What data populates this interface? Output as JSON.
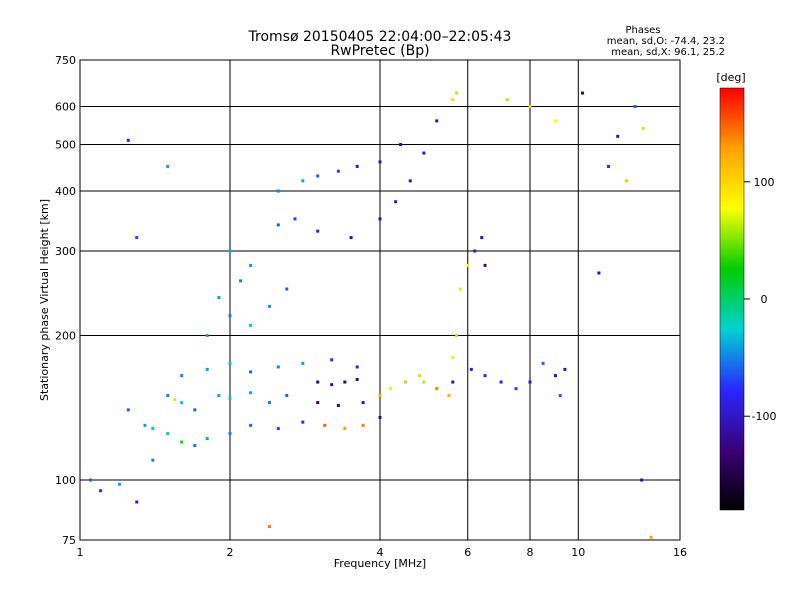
{
  "chart_data": {
    "type": "scatter",
    "title": "Tromsø 20150405 22:04:00–22:05:43",
    "subtitle": "RwPretec (Bp)",
    "xlabel": "Frequency [MHz]",
    "ylabel": "Stationary phase Virtual Height [km]",
    "x_scale": "log",
    "y_scale": "log",
    "xlim": [
      1,
      16
    ],
    "ylim": [
      75,
      750
    ],
    "xticks": [
      "1",
      "2",
      "4",
      "6",
      "8",
      "10",
      "16"
    ],
    "yticks": [
      "75",
      "100",
      "200",
      "300",
      "400",
      "500",
      "600",
      "750"
    ],
    "grid": true,
    "info_box": {
      "heading": "Phases",
      "line_o": "mean, sd,O: -74.4, 23.2",
      "line_x": "mean, sd,X: 96.1, 25.2"
    },
    "colorbar": {
      "label": "[deg]",
      "range": [
        -180,
        180
      ],
      "ticks": [
        "100",
        "0",
        "-100"
      ],
      "colors": [
        "#000000",
        "#3c0078",
        "#2828ff",
        "#00d2d2",
        "#00cd00",
        "#ffff00",
        "#ffa000",
        "#ff0000"
      ]
    },
    "series": [
      {
        "values": [
          [
            1.25,
            140,
            -60
          ],
          [
            1.35,
            130,
            -40
          ],
          [
            1.4,
            128,
            -30
          ],
          [
            1.5,
            125,
            -20
          ],
          [
            1.6,
            120,
            30
          ],
          [
            1.7,
            118,
            -50
          ],
          [
            1.8,
            122,
            -40
          ],
          [
            2.0,
            125,
            -50
          ],
          [
            2.2,
            130,
            -60
          ],
          [
            2.5,
            128,
            -70
          ],
          [
            2.8,
            132,
            -80
          ],
          [
            1.5,
            150,
            -50
          ],
          [
            1.6,
            145,
            -30
          ],
          [
            1.55,
            147,
            100
          ],
          [
            1.7,
            140,
            -60
          ],
          [
            1.9,
            150,
            -40
          ],
          [
            2.0,
            148,
            -30
          ],
          [
            2.2,
            152,
            -40
          ],
          [
            2.4,
            145,
            -50
          ],
          [
            2.6,
            150,
            -60
          ],
          [
            1.6,
            165,
            -50
          ],
          [
            1.8,
            170,
            -40
          ],
          [
            2.0,
            175,
            -30
          ],
          [
            2.2,
            168,
            -60
          ],
          [
            2.5,
            172,
            -50
          ],
          [
            2.8,
            175,
            -40
          ],
          [
            3.2,
            178,
            -80
          ],
          [
            3.6,
            172,
            -90
          ],
          [
            1.8,
            200,
            -40
          ],
          [
            2.0,
            220,
            -50
          ],
          [
            2.2,
            210,
            -30
          ],
          [
            1.9,
            240,
            -40
          ],
          [
            2.1,
            260,
            -50
          ],
          [
            2.2,
            280,
            -45
          ],
          [
            2.0,
            300,
            -35
          ],
          [
            2.4,
            230,
            -40
          ],
          [
            2.6,
            250,
            -60
          ],
          [
            2.5,
            340,
            -60
          ],
          [
            2.7,
            350,
            -70
          ],
          [
            3.0,
            330,
            -90
          ],
          [
            3.5,
            320,
            -110
          ],
          [
            4.0,
            350,
            -110
          ],
          [
            4.3,
            380,
            -100
          ],
          [
            4.6,
            420,
            -110
          ],
          [
            4.9,
            480,
            -100
          ],
          [
            5.2,
            560,
            -110
          ],
          [
            5.6,
            620,
            100
          ],
          [
            5.7,
            640,
            60
          ],
          [
            2.5,
            400,
            -50
          ],
          [
            2.8,
            420,
            -40
          ],
          [
            3.0,
            430,
            -60
          ],
          [
            3.3,
            440,
            -70
          ],
          [
            3.6,
            450,
            -90
          ],
          [
            4.0,
            460,
            -100
          ],
          [
            4.4,
            500,
            -110
          ],
          [
            3.0,
            160,
            -130
          ],
          [
            3.2,
            158,
            -120
          ],
          [
            3.4,
            160,
            -130
          ],
          [
            3.6,
            162,
            -120
          ],
          [
            3.0,
            145,
            -130
          ],
          [
            3.3,
            143,
            -120
          ],
          [
            3.7,
            145,
            -110
          ],
          [
            4.0,
            150,
            120
          ],
          [
            4.2,
            155,
            90
          ],
          [
            4.5,
            160,
            110
          ],
          [
            4.8,
            165,
            100
          ],
          [
            3.1,
            130,
            150
          ],
          [
            3.4,
            128,
            130
          ],
          [
            3.7,
            130,
            140
          ],
          [
            4.0,
            135,
            -120
          ],
          [
            5.6,
            180,
            90
          ],
          [
            5.7,
            200,
            110
          ],
          [
            5.8,
            250,
            90
          ],
          [
            6.0,
            280,
            80
          ],
          [
            6.2,
            300,
            -100
          ],
          [
            6.4,
            320,
            -110
          ],
          [
            6.5,
            280,
            -120
          ],
          [
            5.6,
            160,
            -110
          ],
          [
            6.1,
            170,
            -100
          ],
          [
            6.5,
            165,
            -90
          ],
          [
            7.0,
            160,
            -80
          ],
          [
            7.5,
            155,
            -70
          ],
          [
            8.0,
            160,
            -100
          ],
          [
            8.5,
            175,
            -60
          ],
          [
            9.0,
            165,
            -110
          ],
          [
            9.4,
            170,
            -100
          ],
          [
            9.2,
            150,
            -60
          ],
          [
            5.5,
            150,
            120
          ],
          [
            5.2,
            155,
            140
          ],
          [
            4.9,
            160,
            60
          ],
          [
            1.05,
            100,
            -60
          ],
          [
            1.1,
            95,
            -80
          ],
          [
            1.2,
            98,
            -40
          ],
          [
            1.3,
            90,
            -90
          ],
          [
            1.4,
            110,
            -50
          ],
          [
            2.4,
            80,
            140
          ],
          [
            14,
            76,
            130
          ],
          [
            13.4,
            100,
            -110
          ],
          [
            1.3,
            320,
            -70
          ],
          [
            1.25,
            510,
            -80
          ],
          [
            1.5,
            450,
            -40
          ],
          [
            11.5,
            450,
            -80
          ],
          [
            12.5,
            420,
            110
          ],
          [
            13,
            600,
            -60
          ],
          [
            10.2,
            640,
            -130
          ],
          [
            8.0,
            600,
            100
          ],
          [
            7.2,
            620,
            60
          ],
          [
            9.0,
            560,
            80
          ],
          [
            11.0,
            270,
            -110
          ],
          [
            12.0,
            520,
            -110
          ],
          [
            13.5,
            540,
            100
          ]
        ]
      }
    ]
  }
}
